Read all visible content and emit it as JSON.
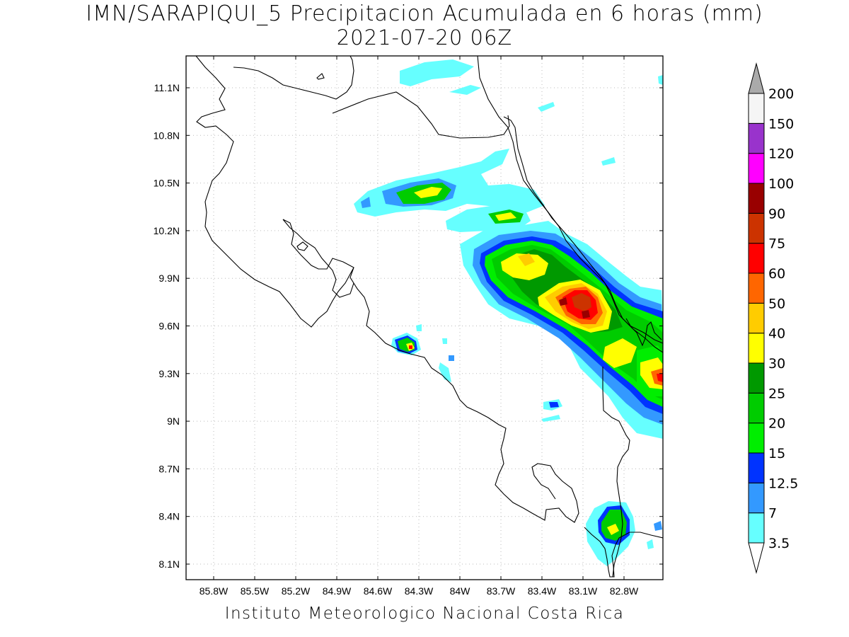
{
  "title": {
    "line1": "IMN/SARAPIQUI_5 Precipitacion Acumulada en 6 horas (mm)",
    "line2": "2021-07-20 06Z"
  },
  "footer": "Instituto Meteorologico Nacional Costa Rica",
  "map": {
    "lon_labels": [
      "85.8W",
      "85.5W",
      "85.2W",
      "84.9W",
      "84.6W",
      "84.3W",
      "84W",
      "83.7W",
      "83.4W",
      "83.1W",
      "82.8W"
    ],
    "lat_labels": [
      "11.1N",
      "10.8N",
      "10.5N",
      "10.2N",
      "9.9N",
      "9.6N",
      "9.3N",
      "9N",
      "8.7N",
      "8.4N",
      "8.1N"
    ]
  },
  "colorbar": {
    "labels": [
      "3.5",
      "7",
      "12.5",
      "15",
      "20",
      "25",
      "30",
      "40",
      "50",
      "60",
      "75",
      "90",
      "100",
      "120",
      "150",
      "200"
    ],
    "colors": [
      "#66ffff",
      "#3399ff",
      "#0033ff",
      "#00ee00",
      "#00cc00",
      "#009900",
      "#ffff00",
      "#ffcc00",
      "#ff6600",
      "#ff0000",
      "#cc3300",
      "#990000",
      "#ff00ff",
      "#9933cc",
      "#f5f5f5"
    ],
    "over_color": "#aaaaaa"
  },
  "precip_colors": {
    "c3_5": "#66ffff",
    "c7": "#3399ff",
    "c12_5": "#0033ff",
    "c15": "#00ee00",
    "c20": "#00cc00",
    "c25": "#009900",
    "c30": "#ffff00",
    "c40": "#ffcc00",
    "c50": "#ff6600",
    "c60": "#ff0000",
    "c75": "#cc3300",
    "c90": "#990000"
  }
}
